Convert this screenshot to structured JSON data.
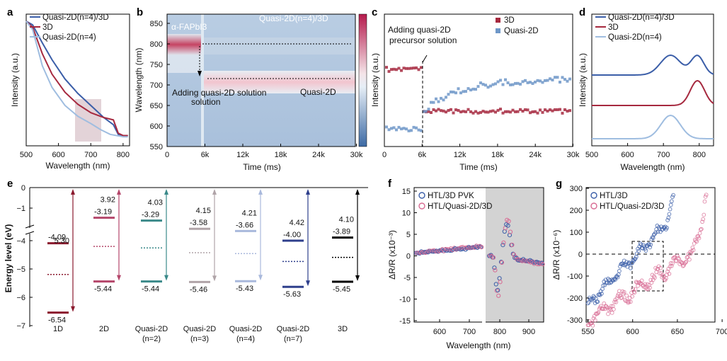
{
  "colors": {
    "dark_blue": "#3b5ea8",
    "dark_red": "#a6293f",
    "light_blue": "#9fbde0",
    "pink": "#d86b93",
    "grid_blue": "#6e97c8",
    "panel_gray": "#d3d3d3"
  },
  "chart_data": [
    {
      "id": "a",
      "label": "a",
      "type": "line",
      "xlabel": "Wavelength (nm)",
      "ylabel": "Intensity (a.u.)",
      "xlim": [
        500,
        820
      ],
      "xticks": [
        500,
        600,
        700,
        800
      ],
      "series": [
        {
          "name": "Quasi-2D(n=4)/3D",
          "color": "#3b5ea8",
          "points": [
            [
              500,
              1.0
            ],
            [
              520,
              0.97
            ],
            [
              550,
              0.82
            ],
            [
              580,
              0.68
            ],
            [
              620,
              0.52
            ],
            [
              660,
              0.4
            ],
            [
              700,
              0.3
            ],
            [
              740,
              0.2
            ],
            [
              770,
              0.14
            ],
            [
              785,
              0.06
            ],
            [
              800,
              0.05
            ],
            [
              815,
              0.05
            ]
          ]
        },
        {
          "name": "3D",
          "color": "#a6293f",
          "points": [
            [
              500,
              1.0
            ],
            [
              520,
              0.95
            ],
            [
              550,
              0.73
            ],
            [
              580,
              0.56
            ],
            [
              620,
              0.41
            ],
            [
              660,
              0.31
            ],
            [
              700,
              0.24
            ],
            [
              740,
              0.2
            ],
            [
              770,
              0.18
            ],
            [
              785,
              0.07
            ],
            [
              800,
              0.05
            ],
            [
              815,
              0.05
            ]
          ]
        },
        {
          "name": "Quasi-2D(n=4)",
          "color": "#9fbde0",
          "points": [
            [
              500,
              1.0
            ],
            [
              520,
              0.93
            ],
            [
              550,
              0.63
            ],
            [
              580,
              0.45
            ],
            [
              620,
              0.3
            ],
            [
              660,
              0.21
            ],
            [
              700,
              0.15
            ],
            [
              730,
              0.1
            ],
            [
              760,
              0.06
            ],
            [
              800,
              0.04
            ],
            [
              815,
              0.04
            ]
          ]
        }
      ],
      "highlight_range_nm": [
        650,
        730
      ]
    },
    {
      "id": "b",
      "label": "b",
      "type": "heatmap",
      "xlabel": "Time (ms)",
      "ylabel": "Wavelength (nm)",
      "xticks": [
        "0",
        "6k",
        "12k",
        "18k",
        "24k",
        "30k"
      ],
      "yticks": [
        "550",
        "600",
        "650",
        "700",
        "750",
        "800",
        "850"
      ],
      "annotations": [
        "α-FAPbI3",
        "Quasi-2D(n=4)/3D",
        "Adding quasi-2D solution",
        "Quasi-2D"
      ]
    },
    {
      "id": "c",
      "label": "c",
      "type": "scatter",
      "xlabel": "Time (ms)",
      "ylabel": "Intensity (a.u.)",
      "xticks": [
        "0",
        "6k",
        "12k",
        "18k",
        "24k",
        "30k"
      ],
      "series": [
        {
          "name": "3D",
          "color": "#a6293f"
        },
        {
          "name": "Quasi-2D",
          "color": "#6e97c8"
        }
      ],
      "annotations": [
        "Adding quasi-2D",
        "precursor solution"
      ]
    },
    {
      "id": "d",
      "label": "d",
      "type": "line",
      "xlabel": "Wavelength (nm)",
      "ylabel": "Intensity (a.u.)",
      "xlim": [
        500,
        840
      ],
      "xticks": [
        500,
        600,
        700,
        800
      ],
      "series": [
        {
          "name": "Quasi-2D(n=4)/3D",
          "color": "#3b5ea8",
          "peaks_nm": [
            720,
            795
          ]
        },
        {
          "name": "3D",
          "color": "#a6293f",
          "peaks_nm": [
            795
          ]
        },
        {
          "name": "Quasi-2D(n=4)",
          "color": "#9fbde0",
          "peaks_nm": [
            720
          ]
        }
      ]
    },
    {
      "id": "e",
      "label": "e",
      "type": "energy-diagram",
      "ylabel": "Energy level (eV)",
      "yticks": [
        "0",
        "−1",
        "−4",
        "−5",
        "−6",
        "−7"
      ],
      "categories": [
        {
          "name": "1D",
          "cb": "-4.09",
          "vb": "-6.54",
          "gap": "5.30",
          "color": "#8b1a2e"
        },
        {
          "name": "2D",
          "cb": "-3.19",
          "vb": "-5.44",
          "gap": "3.92",
          "color": "#b5476b"
        },
        {
          "name": "Quasi-2D",
          "n": "(n=2)",
          "cb": "-3.29",
          "vb": "-5.44",
          "gap": "4.03",
          "color": "#3b8a8a"
        },
        {
          "name": "Quasi-2D",
          "n": "(n=3)",
          "cb": "-3.58",
          "vb": "-5.46",
          "gap": "4.15",
          "color": "#b0a4a8"
        },
        {
          "name": "Quasi-2D",
          "n": "(n=4)",
          "cb": "-3.66",
          "vb": "-5.43",
          "gap": "4.21",
          "color": "#a9b9dc"
        },
        {
          "name": "Quasi-2D",
          "n": "(n=7)",
          "cb": "-4.00",
          "vb": "-5.63",
          "gap": "4.42",
          "color": "#2e3f8c"
        },
        {
          "name": "3D",
          "cb": "-3.89",
          "vb": "-5.45",
          "gap": "4.10",
          "color": "#000000"
        }
      ]
    },
    {
      "id": "f",
      "label": "f",
      "type": "scatter",
      "xlabel": "Wavelength (nm)",
      "ylabel": "ΔR/R (x10⁻³)",
      "yticks": [
        "15",
        "10",
        "5",
        "0",
        "-5",
        "-10",
        "-15"
      ],
      "xticks": [
        "600",
        "700",
        "800",
        "900"
      ],
      "series": [
        {
          "name": "HTL/3D PVK",
          "color": "#3b5ea8"
        },
        {
          "name": "HTL/Quasi-2D/3D",
          "color": "#d86b93"
        }
      ]
    },
    {
      "id": "g",
      "label": "g",
      "type": "scatter",
      "xlabel": "",
      "ylabel": "ΔR/R (x10⁻⁶)",
      "yticks": [
        "300",
        "200",
        "100",
        "0",
        "-100",
        "-200",
        "-300"
      ],
      "xticks": [
        "550",
        "600",
        "650",
        "700"
      ],
      "series": [
        {
          "name": "HTL/3D",
          "color": "#3b5ea8"
        },
        {
          "name": "HTL/Quasi-2D/3D",
          "color": "#d86b93"
        }
      ]
    }
  ]
}
